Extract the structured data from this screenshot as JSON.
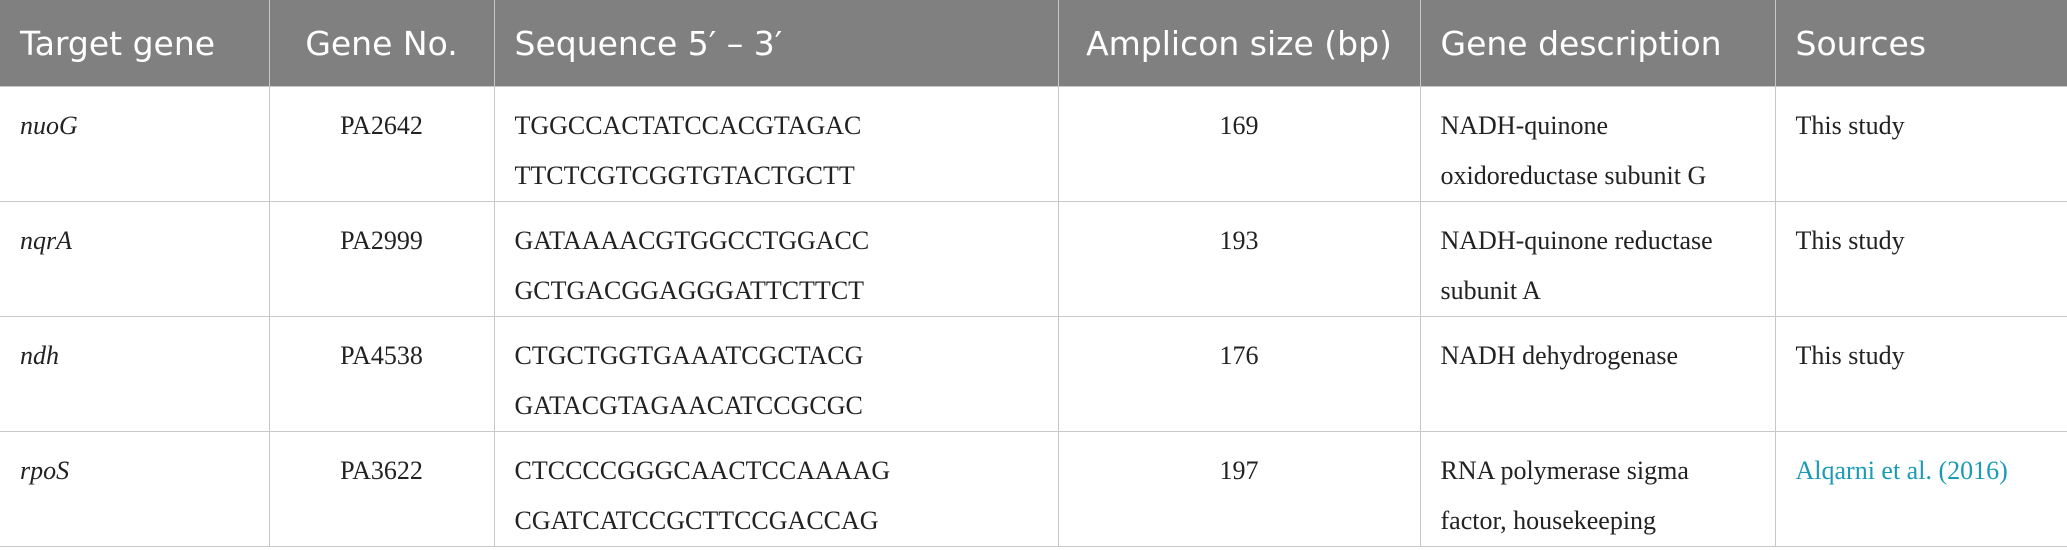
{
  "table": {
    "header": [
      "Target gene",
      "Gene No.",
      "Sequence 5′ – 3′",
      "Amplicon size (bp)",
      "Gene description",
      "Sources"
    ],
    "rows": [
      [
        "nuoG",
        "PA2642",
        [
          "TGGCCACTATCCACGTAGAC",
          "TTCTCGTCGGTGTACTGCTT"
        ],
        "169",
        "NADH-quinone oxidoreductase subunit G",
        "This study"
      ],
      [
        "nqrA",
        "PA2999",
        [
          "GATAAAACGTGGCCTGGACC",
          "GCTGACGGAGGGATTCTTCT"
        ],
        "193",
        "NADH-quinone reductase subunit A",
        "This study"
      ],
      [
        "ndh",
        "PA4538",
        [
          "CTGCTGGTGAAATCGCTACG",
          "GATACGTAGAACATCCGCGC"
        ],
        "176",
        "NADH dehydrogenase",
        "This study"
      ],
      [
        "rpoS",
        "PA3622",
        [
          "CTCCCCGGGCAACTCCAAAAG",
          "CGATCATCCGCTTCCGACCAG"
        ],
        "197",
        "RNA polymerase sigma factor, housekeeping",
        "Alqarni et al. (2016)"
      ]
    ]
  }
}
